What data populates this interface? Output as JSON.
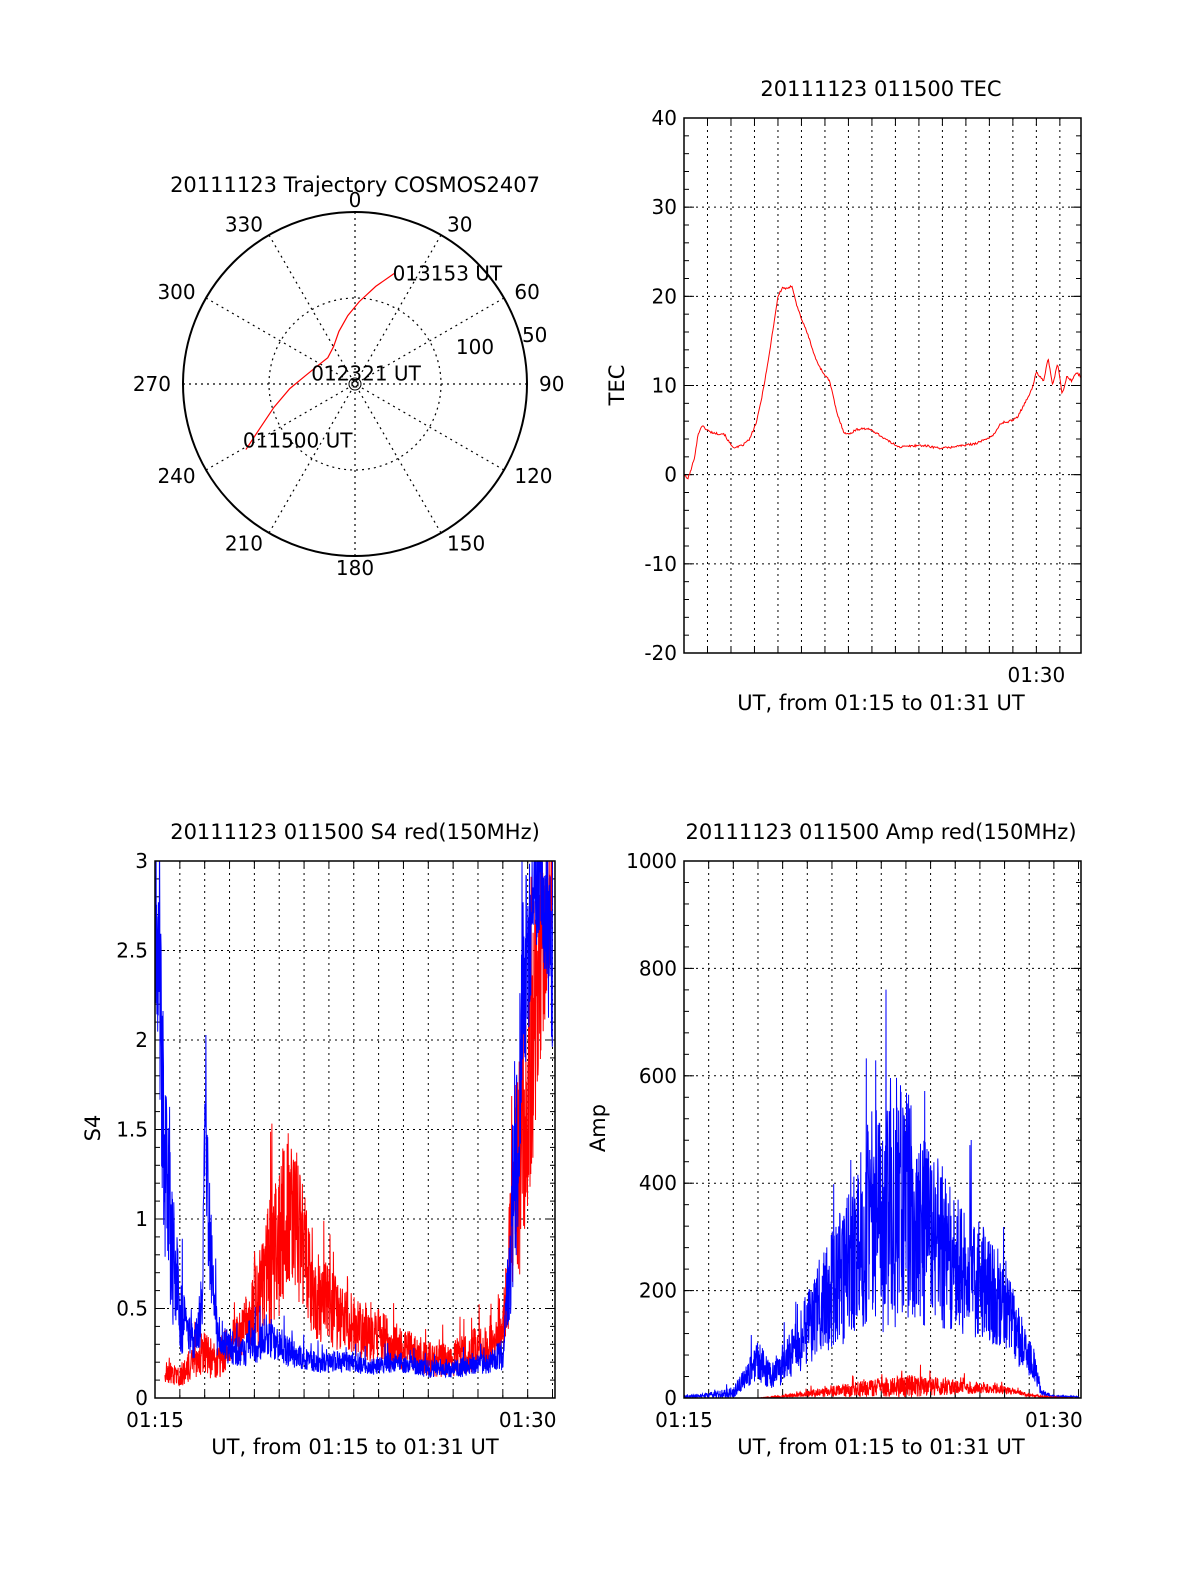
{
  "chart_data": [
    {
      "type": "polar",
      "title": "20111123 Trajectory COSMOS2407",
      "azimuth_labels": [
        "0",
        "30",
        "60",
        "90",
        "120",
        "150",
        "180",
        "210",
        "240",
        "270",
        "300",
        "330"
      ],
      "elevation_labels": [
        "50",
        "100"
      ],
      "grid": true,
      "trajectory": {
        "color": "#ff0000",
        "points": [
          {
            "az": 239,
            "el": 26,
            "label": "011500 UT"
          },
          {
            "az": 245,
            "el": 39
          },
          {
            "az": 254,
            "el": 51
          },
          {
            "az": 266,
            "el": 62
          },
          {
            "az": 280,
            "el": 71
          },
          {
            "az": 297,
            "el": 76,
            "label": "012321 UT"
          },
          {
            "az": 314,
            "el": 78
          },
          {
            "az": 330,
            "el": 75
          },
          {
            "az": 343,
            "el": 68
          },
          {
            "az": 354,
            "el": 60
          },
          {
            "az": 3,
            "el": 52
          },
          {
            "az": 12,
            "el": 42
          },
          {
            "az": 20,
            "el": 31,
            "label": "013153 UT"
          }
        ]
      },
      "point_labels": [
        "011500 UT",
        "012321 UT",
        "013153 UT"
      ]
    },
    {
      "type": "line",
      "title": "20111123 011500 TEC",
      "xlabel": "UT, from 01:15 to 01:31 UT",
      "ylabel": "TEC",
      "xlim": [
        0,
        16.9
      ],
      "ylim": [
        -20,
        40
      ],
      "yticks": [
        -20,
        -10,
        0,
        10,
        20,
        30,
        40
      ],
      "xtick_labels": [
        {
          "x": 15,
          "label": "01:30"
        }
      ],
      "grid": true,
      "series": [
        {
          "color": "#ff0000",
          "x": [
            0,
            0.15,
            0.3,
            0.45,
            0.6,
            0.75,
            0.9,
            1.1,
            1.4,
            1.7,
            2.0,
            2.2,
            2.5,
            2.8,
            3.1,
            3.3,
            3.6,
            3.8,
            4.0,
            4.2,
            4.4,
            4.6,
            4.8,
            5.0,
            5.3,
            5.6,
            5.9,
            6.2,
            6.5,
            6.8,
            7.0,
            7.3,
            7.6,
            8.0,
            8.4,
            8.8,
            9.2,
            9.6,
            10.0,
            10.4,
            10.8,
            11.2,
            11.6,
            12.0,
            12.4,
            12.8,
            13.2,
            13.5,
            13.9,
            14.2,
            14.5,
            14.8,
            15.0,
            15.3,
            15.5,
            15.7,
            15.9,
            16.1,
            16.3,
            16.5,
            16.7,
            16.9
          ],
          "values": [
            0,
            -0.5,
            0.5,
            2.0,
            4.5,
            5.5,
            5.2,
            4.8,
            4.6,
            4.6,
            3.3,
            3.0,
            3.3,
            4.0,
            6.0,
            8.5,
            13.0,
            16.5,
            20.0,
            21.0,
            20.8,
            21.2,
            19.0,
            17.5,
            15.5,
            13.0,
            11.5,
            10.5,
            7.0,
            4.8,
            4.5,
            5.0,
            5.2,
            5.0,
            4.3,
            3.6,
            3.1,
            3.2,
            3.3,
            3.2,
            3.0,
            3.0,
            3.2,
            3.3,
            3.5,
            3.9,
            4.5,
            5.8,
            6.0,
            6.5,
            8.0,
            9.5,
            11.5,
            10.5,
            13.0,
            10.0,
            12.5,
            9.0,
            11.0,
            10.5,
            11.5,
            11.0
          ]
        }
      ]
    },
    {
      "type": "line",
      "title": "20111123 011500 S4 red(150MHz)",
      "xlabel": "UT, from 01:15 to 01:31 UT",
      "ylabel": "S4",
      "xlim": [
        0,
        16.1
      ],
      "ylim": [
        0,
        3
      ],
      "yticks": [
        0,
        0.5,
        1,
        1.5,
        2,
        2.5,
        3
      ],
      "ytick_labels": [
        "0",
        "0.5",
        "1",
        "1.5",
        "2",
        "2.5",
        "3"
      ],
      "xtick_labels": [
        {
          "x": 0,
          "label": "01:15"
        },
        {
          "x": 15,
          "label": "01:30"
        }
      ],
      "grid": true,
      "series": [
        {
          "color": "#ff0000",
          "x": [
            0.4,
            1.0,
            1.5,
            2.0,
            2.5,
            3.0,
            3.5,
            4.0,
            4.5,
            5.0,
            5.5,
            6.0,
            6.5,
            7.0,
            7.5,
            8.0,
            8.5,
            9.0,
            9.5,
            10.0,
            10.5,
            11.0,
            11.5,
            12.0,
            12.5,
            13.0,
            13.5,
            14.0,
            14.3,
            14.6,
            14.9,
            15.2,
            15.5,
            15.8,
            16.0
          ],
          "values": [
            0.15,
            0.12,
            0.2,
            0.25,
            0.2,
            0.3,
            0.35,
            0.5,
            0.7,
            0.9,
            1.1,
            0.8,
            0.6,
            0.5,
            0.45,
            0.4,
            0.35,
            0.35,
            0.3,
            0.28,
            0.25,
            0.22,
            0.2,
            0.22,
            0.25,
            0.28,
            0.3,
            0.35,
            0.8,
            1.2,
            1.6,
            2.0,
            2.4,
            2.7,
            2.9
          ],
          "spread": [
            0.06,
            0.06,
            0.1,
            0.12,
            0.12,
            0.12,
            0.15,
            0.25,
            0.35,
            0.45,
            0.45,
            0.35,
            0.28,
            0.22,
            0.2,
            0.18,
            0.15,
            0.15,
            0.14,
            0.12,
            0.1,
            0.1,
            0.1,
            0.1,
            0.12,
            0.12,
            0.12,
            0.14,
            0.4,
            0.6,
            0.7,
            0.7,
            0.6,
            0.4,
            0.3
          ]
        },
        {
          "color": "#0000ff",
          "x": [
            0,
            0.2,
            0.4,
            0.7,
            1.0,
            1.3,
            1.6,
            1.9,
            2.0,
            2.2,
            2.5,
            3.0,
            3.5,
            4.0,
            4.5,
            5.0,
            5.5,
            6.0,
            6.5,
            7.0,
            7.5,
            8.0,
            8.5,
            9.0,
            9.5,
            10.0,
            10.5,
            11.0,
            11.5,
            12.0,
            12.5,
            13.0,
            13.5,
            14.0,
            14.3,
            14.6,
            14.9,
            15.2,
            15.5,
            15.8,
            16.0
          ],
          "values": [
            2.8,
            2.2,
            1.2,
            0.8,
            0.5,
            0.35,
            0.3,
            0.5,
            1.5,
            0.9,
            0.35,
            0.28,
            0.25,
            0.3,
            0.35,
            0.3,
            0.25,
            0.22,
            0.2,
            0.2,
            0.2,
            0.2,
            0.18,
            0.18,
            0.2,
            0.2,
            0.18,
            0.16,
            0.17,
            0.16,
            0.18,
            0.18,
            0.2,
            0.25,
            0.7,
            1.5,
            2.3,
            2.8,
            2.9,
            2.6,
            2.4
          ],
          "spread": [
            0.5,
            0.6,
            0.6,
            0.4,
            0.25,
            0.12,
            0.1,
            0.2,
            0.4,
            0.3,
            0.12,
            0.1,
            0.08,
            0.12,
            0.12,
            0.1,
            0.08,
            0.06,
            0.06,
            0.06,
            0.06,
            0.06,
            0.05,
            0.05,
            0.06,
            0.06,
            0.05,
            0.05,
            0.05,
            0.05,
            0.06,
            0.06,
            0.06,
            0.1,
            0.35,
            0.6,
            0.6,
            0.4,
            0.3,
            0.5,
            0.5
          ]
        }
      ]
    },
    {
      "type": "line",
      "title": "20111123 011500 Amp red(150MHz)",
      "xlabel": "UT, from 01:15 to 01:31 UT",
      "ylabel": "Amp",
      "xlim": [
        0,
        16.1
      ],
      "ylim": [
        0,
        1000
      ],
      "yticks": [
        0,
        200,
        400,
        600,
        800,
        1000
      ],
      "xtick_labels": [
        {
          "x": 0,
          "label": "01:15"
        },
        {
          "x": 15,
          "label": "01:30"
        }
      ],
      "grid": true,
      "series": [
        {
          "color": "#0000ff",
          "x": [
            0,
            1.0,
            2.0,
            2.5,
            3.0,
            3.5,
            4.0,
            4.5,
            5.0,
            5.5,
            6.0,
            6.5,
            7.0,
            7.5,
            8.0,
            8.5,
            9.0,
            9.5,
            10.0,
            10.5,
            11.0,
            11.5,
            12.0,
            12.5,
            13.0,
            13.5,
            14.0,
            14.2,
            14.5,
            15.0,
            16.0
          ],
          "values": [
            2,
            5,
            10,
            40,
            70,
            40,
            60,
            90,
            130,
            170,
            200,
            240,
            280,
            320,
            350,
            380,
            360,
            330,
            300,
            280,
            250,
            230,
            220,
            200,
            180,
            120,
            80,
            60,
            10,
            3,
            2
          ],
          "spread": [
            2,
            5,
            10,
            20,
            40,
            25,
            35,
            50,
            70,
            90,
            110,
            140,
            170,
            200,
            230,
            250,
            220,
            190,
            170,
            150,
            130,
            120,
            110,
            100,
            90,
            60,
            40,
            30,
            6,
            2,
            1
          ]
        },
        {
          "color": "#ff0000",
          "x": [
            0,
            3.0,
            4.0,
            5.0,
            6.0,
            7.0,
            8.0,
            9.0,
            10.0,
            11.0,
            12.0,
            13.0,
            14.0,
            15.0,
            16.0
          ],
          "values": [
            0,
            0,
            3,
            8,
            12,
            16,
            20,
            22,
            22,
            20,
            18,
            15,
            5,
            1,
            0
          ],
          "spread": [
            0,
            0,
            2,
            6,
            10,
            14,
            18,
            22,
            18,
            14,
            10,
            8,
            3,
            1,
            0
          ]
        }
      ]
    }
  ]
}
